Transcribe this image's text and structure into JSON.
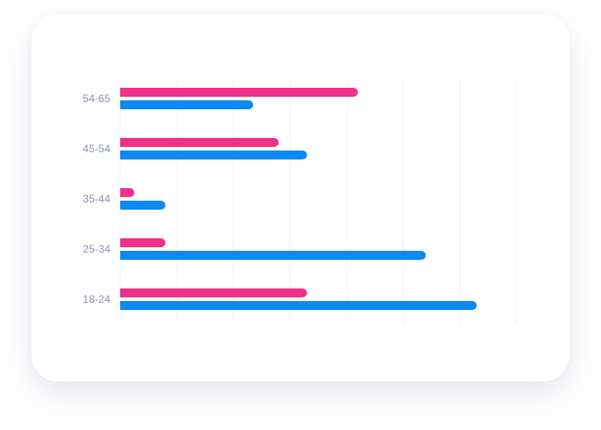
{
  "chart_data": {
    "type": "bar",
    "orientation": "horizontal",
    "categories": [
      "18-24",
      "25-34",
      "35-44",
      "45-54",
      "54-65"
    ],
    "series": [
      {
        "color": "#f0308a",
        "values": [
          33,
          8,
          2.5,
          28,
          42
        ]
      },
      {
        "color": "#0a8af2",
        "values": [
          63,
          54,
          8,
          33,
          23.5
        ]
      }
    ],
    "xlim": [
      0,
      70
    ],
    "x_grid_step": 10,
    "grid": true,
    "title": "",
    "xlabel": "",
    "ylabel": ""
  }
}
